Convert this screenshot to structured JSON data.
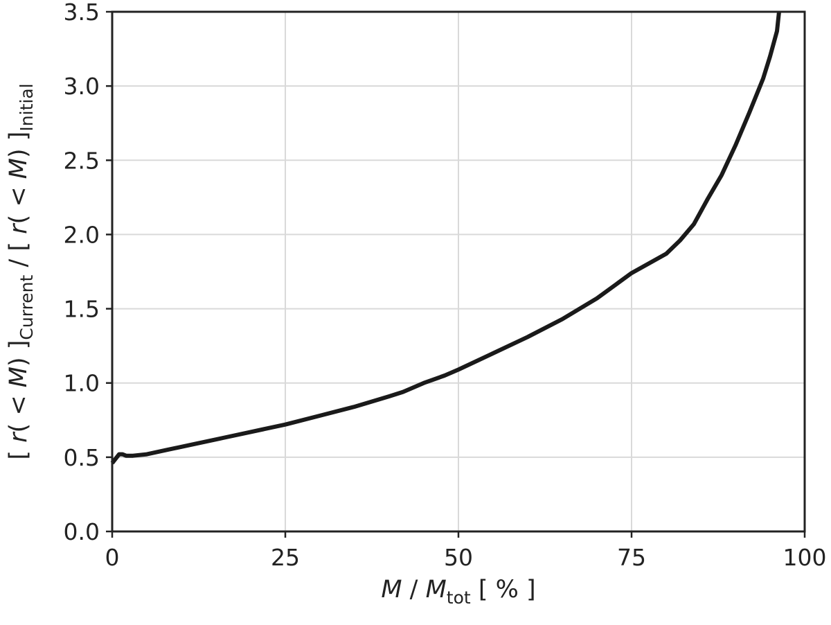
{
  "chart_data": {
    "type": "line",
    "title": "",
    "xlabel": {
      "parts": [
        {
          "text": "M",
          "italic": true
        },
        {
          "text": " / ",
          "italic": false
        },
        {
          "text": "M",
          "italic": true
        },
        {
          "text": "tot",
          "sub": true
        },
        {
          "text": "  [ % ]",
          "italic": false
        }
      ]
    },
    "ylabel": {
      "parts": [
        {
          "text": "[ ",
          "italic": false
        },
        {
          "text": "r",
          "italic": true
        },
        {
          "text": "( < ",
          "italic": false
        },
        {
          "text": "M",
          "italic": true
        },
        {
          "text": ") ]",
          "italic": false
        },
        {
          "text": "Current",
          "sub": true
        },
        {
          "text": " / [ ",
          "italic": false
        },
        {
          "text": "r",
          "italic": true
        },
        {
          "text": "( < ",
          "italic": false
        },
        {
          "text": "M",
          "italic": true
        },
        {
          "text": ") ]",
          "italic": false
        },
        {
          "text": "Initial",
          "sub": true
        }
      ]
    },
    "xlim": [
      0,
      100
    ],
    "ylim": [
      0,
      3.5
    ],
    "xticks": [
      0,
      25,
      50,
      75,
      100
    ],
    "xtick_labels": [
      "0",
      "25",
      "50",
      "75",
      "100"
    ],
    "yticks": [
      0,
      0.5,
      1.0,
      1.5,
      2.0,
      2.5,
      3.0,
      3.5
    ],
    "ytick_labels": [
      "0.0",
      "0.5",
      "1.0",
      "1.5",
      "2.0",
      "2.5",
      "3.0",
      "3.5"
    ],
    "grid": true,
    "colors": {
      "line": "#1a1a1a",
      "grid": "#d9d9d9",
      "axes": "#222222"
    },
    "series": [
      {
        "x": [
          0,
          0.5,
          1,
          1.5,
          2,
          3,
          5,
          8,
          12,
          16,
          20,
          25,
          30,
          35,
          40,
          42,
          45,
          48,
          50,
          55,
          60,
          65,
          70,
          75,
          80,
          82,
          84,
          86,
          88,
          90,
          92,
          94,
          95,
          96,
          96.3
        ],
        "y": [
          0.46,
          0.49,
          0.52,
          0.52,
          0.51,
          0.51,
          0.52,
          0.55,
          0.59,
          0.63,
          0.67,
          0.72,
          0.78,
          0.84,
          0.91,
          0.94,
          1.0,
          1.05,
          1.09,
          1.2,
          1.31,
          1.43,
          1.57,
          1.74,
          1.87,
          1.96,
          2.07,
          2.24,
          2.4,
          2.6,
          2.82,
          3.05,
          3.2,
          3.37,
          3.5
        ]
      }
    ]
  }
}
